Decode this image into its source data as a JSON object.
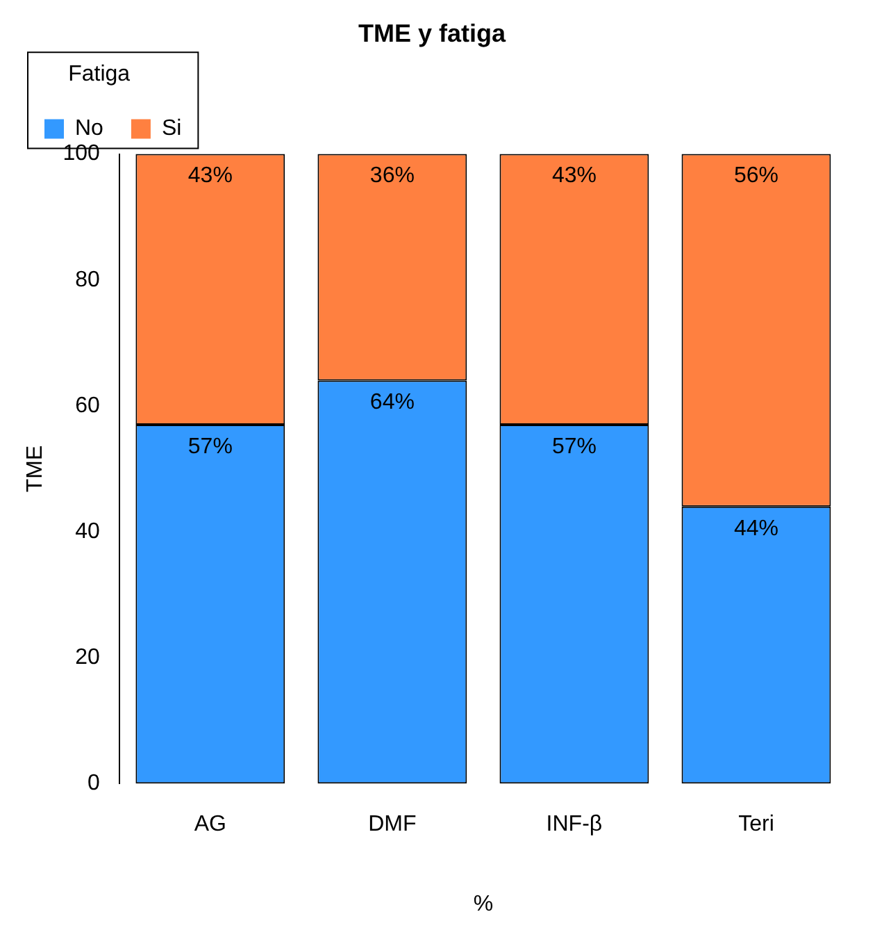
{
  "chart_data": {
    "type": "bar",
    "title": "TME y fatiga",
    "xlabel": "%",
    "ylabel": "TME",
    "legend_title": "Fatiga",
    "legend": "top left",
    "stacked": true,
    "grid": false,
    "categories": [
      "AG",
      "DMF",
      "INF-β",
      "Teri"
    ],
    "series": [
      {
        "name": "No",
        "color": "#3399ff",
        "values": [
          57,
          64,
          57,
          44
        ],
        "value_labels": [
          "57%",
          "64%",
          "57%",
          "44%"
        ]
      },
      {
        "name": "Si",
        "color": "#ff8040",
        "values": [
          43,
          36,
          43,
          56
        ],
        "value_labels": [
          "43%",
          "36%",
          "43%",
          "56%"
        ]
      }
    ],
    "ylim": [
      0,
      100
    ],
    "yticks": [
      0,
      20,
      40,
      60,
      80,
      100
    ]
  }
}
